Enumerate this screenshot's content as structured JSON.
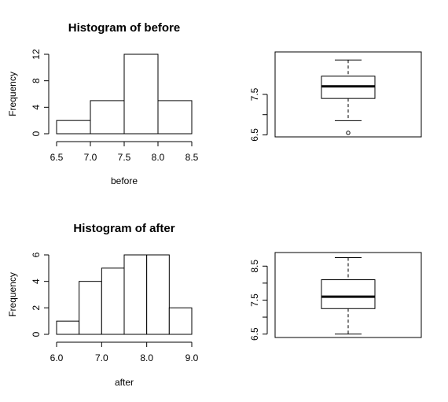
{
  "chart_data": [
    {
      "type": "histogram",
      "title": "Histogram of before",
      "xlabel": "before",
      "ylabel": "Frequency",
      "bins": [
        [
          6.5,
          7.0
        ],
        [
          7.0,
          7.5
        ],
        [
          7.5,
          8.0
        ],
        [
          8.0,
          8.5
        ]
      ],
      "values": [
        2,
        5,
        12,
        5
      ],
      "xlim": [
        6.5,
        8.5
      ],
      "ylim": [
        0,
        12
      ],
      "xticks": [
        "6.5",
        "7.0",
        "7.5",
        "8.0",
        "8.5"
      ],
      "yticks": [
        "0",
        "4",
        "8",
        "12"
      ],
      "yticks_values": [
        0,
        4,
        8,
        12
      ]
    },
    {
      "type": "boxplot",
      "ylim": [
        6.45,
        8.55
      ],
      "yticks": [
        "6.5",
        "7.5"
      ],
      "yticks_values": [
        6.5,
        7.5
      ],
      "min": 6.85,
      "q1": 7.4,
      "median": 7.7,
      "q3": 7.95,
      "max": 8.35,
      "outliers": [
        6.55
      ]
    },
    {
      "type": "histogram",
      "title": "Histogram of after",
      "xlabel": "after",
      "ylabel": "Frequency",
      "bins": [
        [
          6.0,
          6.5
        ],
        [
          6.5,
          7.0
        ],
        [
          7.0,
          7.5
        ],
        [
          7.5,
          8.0
        ],
        [
          8.0,
          8.5
        ],
        [
          8.5,
          9.0
        ]
      ],
      "values": [
        1,
        4,
        5,
        6,
        6,
        2
      ],
      "xlim": [
        6.0,
        9.0
      ],
      "ylim": [
        0,
        6
      ],
      "xticks": [
        "6.0",
        "7.0",
        "8.0",
        "9.0"
      ],
      "yticks": [
        "0",
        "2",
        "4",
        "6"
      ],
      "yticks_values": [
        0,
        2,
        4,
        6
      ]
    },
    {
      "type": "boxplot",
      "ylim": [
        6.4,
        8.9
      ],
      "yticks": [
        "6.5",
        "7.5",
        "8.5"
      ],
      "yticks_values": [
        6.5,
        7.5,
        8.5
      ],
      "min": 6.5,
      "q1": 7.25,
      "median": 7.6,
      "q3": 8.1,
      "max": 8.75,
      "outliers": []
    }
  ]
}
